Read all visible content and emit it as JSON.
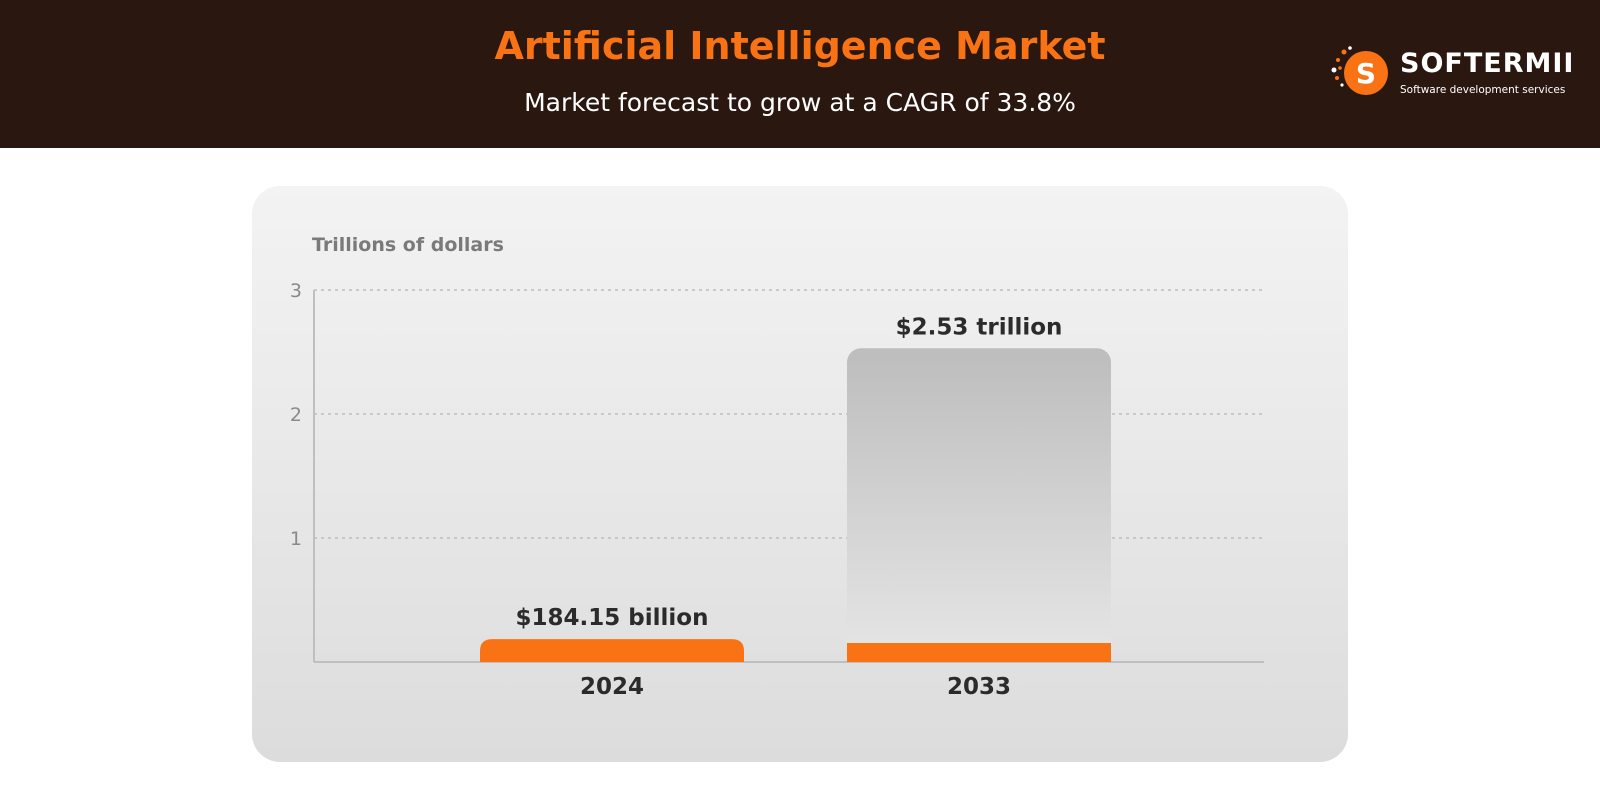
{
  "header": {
    "title": "Artificial Intelligence Market",
    "subtitle": "Market forecast to grow at a CAGR of 33.8%"
  },
  "brand": {
    "name": "SOFTERMII",
    "tagline": "Software development services",
    "icon": "softermii-s-logo-icon",
    "color": "#f97315"
  },
  "colors": {
    "header_bg": "#2a1710",
    "accent": "#f97315",
    "projection_bar": "#bdbdbd"
  },
  "chart_data": {
    "type": "bar",
    "title": "",
    "ylabel": "Trillions of dollars",
    "xlabel": "",
    "ylim": [
      0,
      3
    ],
    "yticks": [
      1,
      2,
      3
    ],
    "grid": true,
    "categories": [
      "2024",
      "2033"
    ],
    "values": [
      0.18415,
      2.53
    ],
    "data_labels": [
      "$184.15 billion",
      "$2.53 trillion"
    ]
  }
}
